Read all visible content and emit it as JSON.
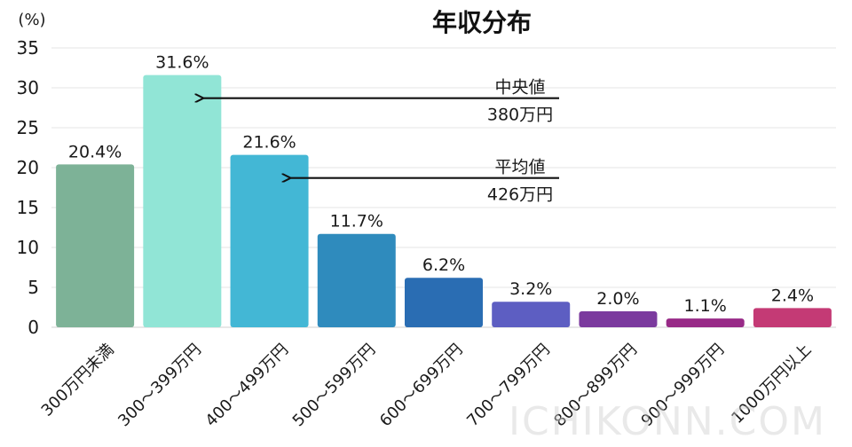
{
  "chart_data": {
    "type": "bar",
    "title": "年収分布",
    "y_unit": "(%)",
    "xlabel": "",
    "ylabel": "",
    "ylim": [
      0,
      35
    ],
    "yticks": [
      0,
      5,
      10,
      15,
      20,
      25,
      30,
      35
    ],
    "grid": true,
    "categories": [
      "300万円未満",
      "300〜399万円",
      "400〜499万円",
      "500〜599万円",
      "600〜699万円",
      "700〜799万円",
      "800〜899万円",
      "900〜999万円",
      "1000万円以上"
    ],
    "values": [
      20.4,
      31.6,
      21.6,
      11.7,
      6.2,
      3.2,
      2.0,
      1.1,
      2.4
    ],
    "value_labels": [
      "20.4%",
      "31.6%",
      "21.6%",
      "11.7%",
      "6.2%",
      "3.2%",
      "2.0%",
      "1.1%",
      "2.4%"
    ],
    "colors": [
      "#7db297",
      "#91e5d6",
      "#43b7d5",
      "#2f8bbd",
      "#2a6db3",
      "#5d5ec2",
      "#7b3a9e",
      "#982a87",
      "#c43a75"
    ],
    "annotations": [
      {
        "line1": "中央値",
        "line2": "380万円",
        "target_category": "300〜399万円",
        "y": 28.7
      },
      {
        "line1": "平均値",
        "line2": "426万円",
        "target_category": "400〜499万円",
        "y": 18.7
      }
    ]
  },
  "watermark": "ICHIKONN.COM"
}
